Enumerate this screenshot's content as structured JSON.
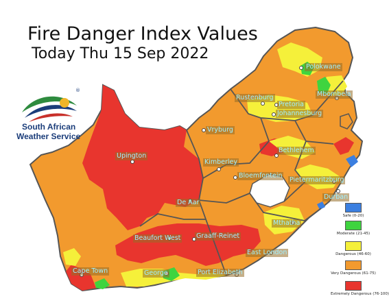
{
  "header": {
    "title": "Fire Danger Index Values",
    "subtitle": "Today Thu 15 Sep 2022"
  },
  "logo": {
    "line1": "South African",
    "line2": "Weather Service",
    "mark": "®"
  },
  "colors": {
    "safe": "#3b7fe0",
    "moderate": "#3fd43f",
    "dangerous": "#f5f03a",
    "very_dangerous": "#f29a2e",
    "extremely_dangerous": "#e8352e",
    "border": "#555555"
  },
  "legend": [
    {
      "label": "Safe (0-20)",
      "color": "#3b7fe0"
    },
    {
      "label": "Moderate (21-45)",
      "color": "#3fd43f"
    },
    {
      "label": "Dangerous (46-60)",
      "color": "#f5f03a"
    },
    {
      "label": "Very Dangerous (61-75)",
      "color": "#f29a2e"
    },
    {
      "label": "Extremely Dangerous (76-100)",
      "color": "#e8352e"
    }
  ],
  "cities": [
    {
      "name": "Polokwane"
    },
    {
      "name": "Mbombela"
    },
    {
      "name": "Rustenburg"
    },
    {
      "name": "Pretoria"
    },
    {
      "name": "Johannesburg"
    },
    {
      "name": "Vryburg"
    },
    {
      "name": "Bethlehem"
    },
    {
      "name": "Upington"
    },
    {
      "name": "Kimberley"
    },
    {
      "name": "Bloemfontein"
    },
    {
      "name": "Pietermaritzburg"
    },
    {
      "name": "Durban"
    },
    {
      "name": "De Aar"
    },
    {
      "name": "Mthatha"
    },
    {
      "name": "Beaufort West"
    },
    {
      "name": "Graaff-Reinet"
    },
    {
      "name": "East London"
    },
    {
      "name": "Cape Town"
    },
    {
      "name": "George"
    },
    {
      "name": "Port Elizabeth"
    }
  ]
}
